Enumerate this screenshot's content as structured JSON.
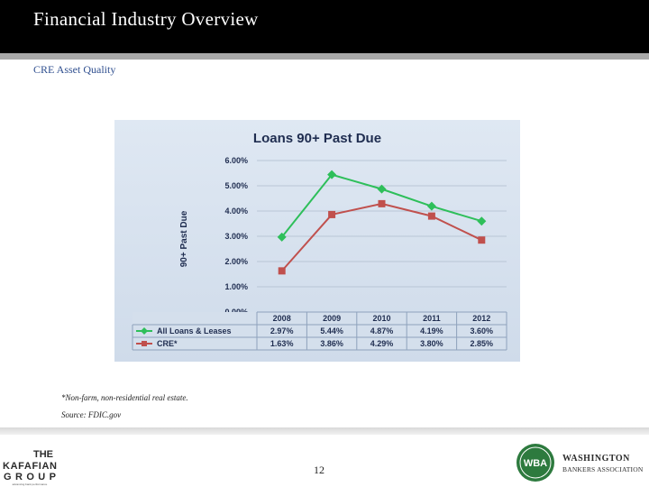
{
  "header": {
    "title": "Financial Industry Overview"
  },
  "subtitle": "CRE Asset Quality",
  "chart_data": {
    "type": "line",
    "title": "Loans 90+ Past Due",
    "ylabel": "90+ Past Due",
    "xlabel": "",
    "ylim": [
      0,
      6
    ],
    "yticks": [
      "0.00%",
      "1.00%",
      "2.00%",
      "3.00%",
      "4.00%",
      "5.00%",
      "6.00%"
    ],
    "categories": [
      "2008",
      "2009",
      "2010",
      "2011",
      "2012"
    ],
    "grid": true,
    "legend": "table-bottom",
    "series": [
      {
        "name": "All Loans & Leases",
        "values": [
          2.97,
          5.44,
          4.87,
          4.19,
          3.6
        ],
        "labels": [
          "2.97%",
          "5.44%",
          "4.87%",
          "4.19%",
          "3.60%"
        ],
        "color": "#2ebf5a",
        "marker": "diamond"
      },
      {
        "name": "CRE*",
        "values": [
          1.63,
          3.86,
          4.29,
          3.8,
          2.85
        ],
        "labels": [
          "1.63%",
          "3.86%",
          "4.29%",
          "3.80%",
          "2.85%"
        ],
        "color": "#c0504d",
        "marker": "square"
      }
    ]
  },
  "note": "*Non-farm, non-residential real estate.",
  "source": "Source: FDIC.gov",
  "page_number": "12",
  "logos": {
    "left": {
      "line1": "THE",
      "line2": "KAFAFIAN",
      "line3": "GROUP",
      "tagline": "advancing bank performance"
    },
    "right": {
      "mark": "WBA",
      "line1": "WASHINGTON",
      "line2": "BANKERS ASSOCIATION"
    }
  },
  "colors": {
    "header_bg": "#000000",
    "subtitle": "#2f4f8f",
    "chart_bg": "#dce6f1"
  }
}
